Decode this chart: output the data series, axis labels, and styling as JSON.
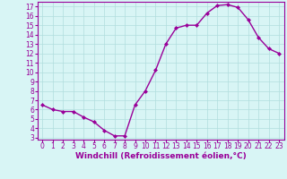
{
  "x": [
    0,
    1,
    2,
    3,
    4,
    5,
    6,
    7,
    8,
    9,
    10,
    11,
    12,
    13,
    14,
    15,
    16,
    17,
    18,
    19,
    20,
    21,
    22,
    23
  ],
  "y": [
    6.5,
    6.0,
    5.8,
    5.8,
    5.2,
    4.7,
    3.8,
    3.2,
    3.2,
    6.5,
    8.0,
    10.2,
    13.0,
    14.7,
    15.0,
    15.0,
    16.3,
    17.1,
    17.2,
    16.9,
    15.6,
    13.7,
    12.5,
    12.0
  ],
  "line_color": "#990099",
  "marker": "D",
  "markersize": 2.0,
  "linewidth": 1.0,
  "xlabel": "Windchill (Refroidissement éolien,°C)",
  "xlabel_fontsize": 6.5,
  "xlabel_color": "#990099",
  "bg_color": "#d8f5f5",
  "plot_bg_color": "#d8f5f5",
  "grid_color": "#b0dede",
  "ylim": [
    2.8,
    17.5
  ],
  "xlim": [
    -0.5,
    23.5
  ],
  "tick_fontsize": 5.5,
  "tick_color": "#990099",
  "yticks": [
    3,
    4,
    5,
    6,
    7,
    8,
    9,
    10,
    11,
    12,
    13,
    14,
    15,
    16,
    17
  ],
  "xticks": [
    0,
    1,
    2,
    3,
    4,
    5,
    6,
    7,
    8,
    9,
    10,
    11,
    12,
    13,
    14,
    15,
    16,
    17,
    18,
    19,
    20,
    21,
    22,
    23
  ]
}
